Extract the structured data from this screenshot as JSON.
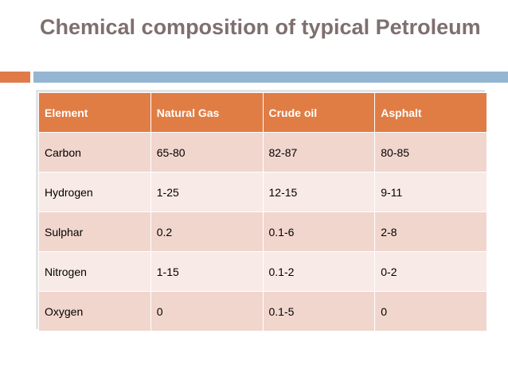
{
  "header": {
    "title": "Chemical composition of typical Petroleum"
  },
  "table": {
    "columns": [
      "Element",
      "Natural Gas",
      "Crude oil",
      "Asphalt"
    ],
    "rows": [
      [
        "Carbon",
        "65-80",
        "82-87",
        "80-85"
      ],
      [
        "Hydrogen",
        "1-25",
        "12-15",
        "9-11"
      ],
      [
        "Sulphar",
        "0.2",
        "0.1-6",
        "2-8"
      ],
      [
        "Nitrogen",
        "1-15",
        "0.1-2",
        "0-2"
      ],
      [
        "Oxygen",
        "0",
        "0.1-5",
        "0"
      ]
    ]
  }
}
